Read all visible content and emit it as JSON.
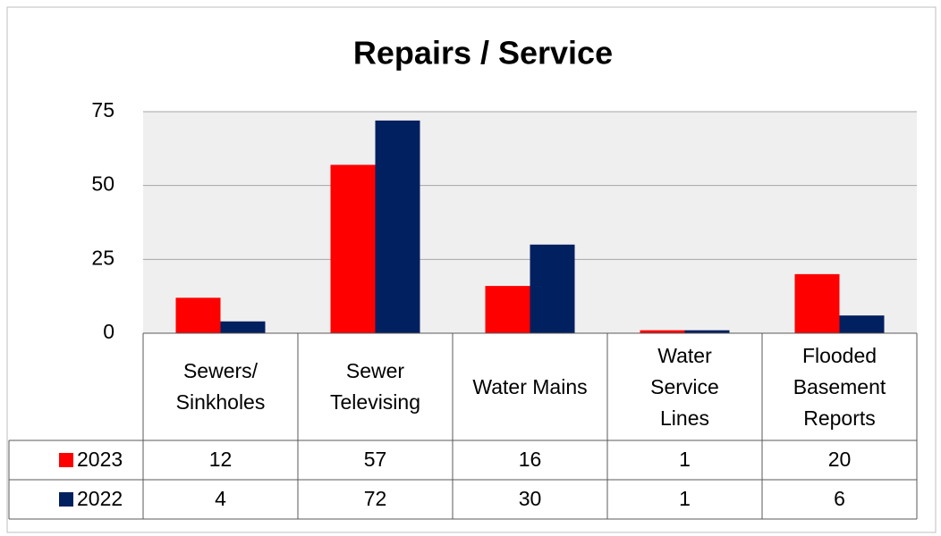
{
  "chart_data": {
    "type": "bar",
    "title": "Repairs / Service",
    "categories": [
      "Sewers/ Sinkholes",
      "Sewer Televising",
      "Water Mains",
      "Water Service Lines",
      "Flooded Basement Reports"
    ],
    "series": [
      {
        "name": "2023",
        "color": "#ff0000",
        "values": [
          12,
          57,
          16,
          1,
          20
        ]
      },
      {
        "name": "2022",
        "color": "#002060",
        "values": [
          4,
          72,
          30,
          1,
          6
        ]
      }
    ],
    "ylim": [
      0,
      75
    ],
    "yticks": [
      0,
      25,
      50,
      75
    ],
    "grid": true,
    "data_table": true
  }
}
